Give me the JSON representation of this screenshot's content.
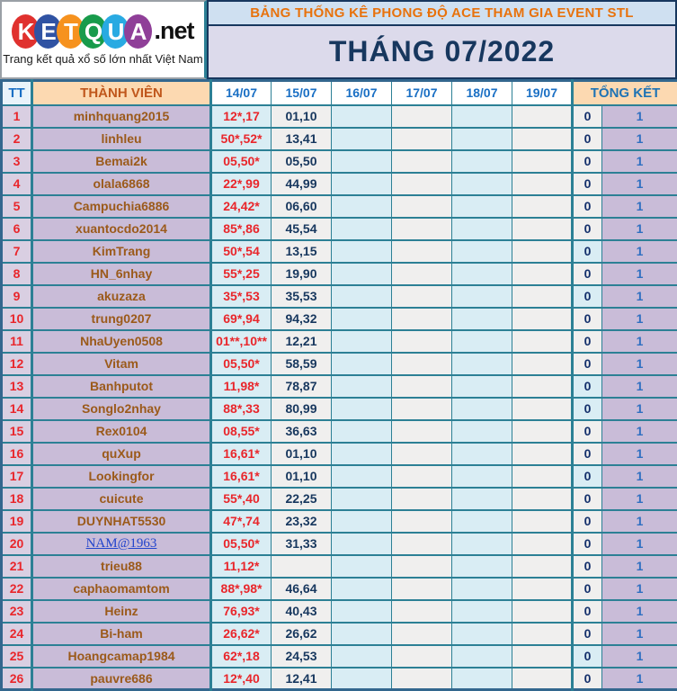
{
  "logo": {
    "letters": [
      {
        "ch": "K",
        "color": "#e0312e"
      },
      {
        "ch": "E",
        "color": "#3053a3"
      },
      {
        "ch": "T",
        "color": "#f6921e"
      },
      {
        "ch": "Q",
        "color": "#189b4b"
      },
      {
        "ch": "U",
        "color": "#29aae2"
      },
      {
        "ch": "A",
        "color": "#8f3f98"
      }
    ],
    "suffix": ".net",
    "tagline": "Trang kết quả xổ số lớn nhất Việt Nam"
  },
  "header": {
    "banner": "BẢNG THỐNG KÊ PHONG ĐỘ ACE THAM GIA EVENT STL",
    "month_title": "THÁNG 07/2022"
  },
  "table": {
    "columns": {
      "tt": "TT",
      "member": "THÀNH VIÊN",
      "dates": [
        "14/07",
        "15/07",
        "16/07",
        "17/07",
        "18/07",
        "19/07"
      ],
      "total": "TỔNG KẾT"
    },
    "rows": [
      {
        "tt": "1",
        "member": "minhquang2015",
        "link": false,
        "d14": "12*,17",
        "d15": "01,10",
        "zero": "0",
        "zero_hl": false,
        "one": "1"
      },
      {
        "tt": "2",
        "member": "linhleu",
        "link": false,
        "d14": "50*,52*",
        "d15": "13,41",
        "zero": "0",
        "zero_hl": false,
        "one": "1"
      },
      {
        "tt": "3",
        "member": "Bemai2k",
        "link": false,
        "d14": "05,50*",
        "d15": "05,50",
        "zero": "0",
        "zero_hl": false,
        "one": "1"
      },
      {
        "tt": "4",
        "member": "olala6868",
        "link": false,
        "d14": "22*,99",
        "d15": "44,99",
        "zero": "0",
        "zero_hl": false,
        "one": "1"
      },
      {
        "tt": "5",
        "member": "Campuchia6886",
        "link": false,
        "d14": "24,42*",
        "d15": "06,60",
        "zero": "0",
        "zero_hl": false,
        "one": "1"
      },
      {
        "tt": "6",
        "member": "xuantocdo2014",
        "link": false,
        "d14": "85*,86",
        "d15": "45,54",
        "zero": "0",
        "zero_hl": false,
        "one": "1"
      },
      {
        "tt": "7",
        "member": "KimTrang",
        "link": false,
        "d14": "50*,54",
        "d15": "13,15",
        "zero": "0",
        "zero_hl": true,
        "one": "1"
      },
      {
        "tt": "8",
        "member": "HN_6nhay",
        "link": false,
        "d14": "55*,25",
        "d15": "19,90",
        "zero": "0",
        "zero_hl": false,
        "one": "1"
      },
      {
        "tt": "9",
        "member": "akuzaza",
        "link": false,
        "d14": "35*,53",
        "d15": "35,53",
        "zero": "0",
        "zero_hl": true,
        "one": "1"
      },
      {
        "tt": "10",
        "member": "trung0207",
        "link": false,
        "d14": "69*,94",
        "d15": "94,32",
        "zero": "0",
        "zero_hl": false,
        "one": "1"
      },
      {
        "tt": "11",
        "member": "NhaUyen0508",
        "link": false,
        "d14": "01**,10**",
        "d15": "12,21",
        "zero": "0",
        "zero_hl": false,
        "one": "1"
      },
      {
        "tt": "12",
        "member": "Vitam",
        "link": false,
        "d14": "05,50*",
        "d15": "58,59",
        "zero": "0",
        "zero_hl": false,
        "one": "1"
      },
      {
        "tt": "13",
        "member": "Banhputot",
        "link": false,
        "d14": "11,98*",
        "d15": "78,87",
        "zero": "0",
        "zero_hl": true,
        "one": "1"
      },
      {
        "tt": "14",
        "member": "Songlo2nhay",
        "link": false,
        "d14": "88*,33",
        "d15": "80,99",
        "zero": "0",
        "zero_hl": true,
        "one": "1"
      },
      {
        "tt": "15",
        "member": "Rex0104",
        "link": false,
        "d14": "08,55*",
        "d15": "36,63",
        "zero": "0",
        "zero_hl": false,
        "one": "1"
      },
      {
        "tt": "16",
        "member": "quXup",
        "link": false,
        "d14": "16,61*",
        "d15": "01,10",
        "zero": "0",
        "zero_hl": false,
        "one": "1"
      },
      {
        "tt": "17",
        "member": "Lookingfor",
        "link": false,
        "d14": "16,61*",
        "d15": "01,10",
        "zero": "0",
        "zero_hl": true,
        "one": "1"
      },
      {
        "tt": "18",
        "member": "cuicute",
        "link": false,
        "d14": "55*,40",
        "d15": "22,25",
        "zero": "0",
        "zero_hl": false,
        "one": "1"
      },
      {
        "tt": "19",
        "member": "DUYNHAT5530",
        "link": false,
        "d14": "47*,74",
        "d15": "23,32",
        "zero": "0",
        "zero_hl": false,
        "one": "1"
      },
      {
        "tt": "20",
        "member": "NAM@1963",
        "link": true,
        "d14": "05,50*",
        "d15": "31,33",
        "zero": "0",
        "zero_hl": false,
        "one": "1"
      },
      {
        "tt": "21",
        "member": "trieu88",
        "link": false,
        "d14": "11,12*",
        "d15": "",
        "zero": "0",
        "zero_hl": false,
        "one": "1"
      },
      {
        "tt": "22",
        "member": "caphaomamtom",
        "link": false,
        "d14": "88*,98*",
        "d15": "46,64",
        "zero": "0",
        "zero_hl": false,
        "one": "1"
      },
      {
        "tt": "23",
        "member": "Heinz",
        "link": false,
        "d14": "76,93*",
        "d15": "40,43",
        "zero": "0",
        "zero_hl": false,
        "one": "1"
      },
      {
        "tt": "24",
        "member": "Bi-ham",
        "link": false,
        "d14": "26,62*",
        "d15": "26,62",
        "zero": "0",
        "zero_hl": false,
        "one": "1"
      },
      {
        "tt": "25",
        "member": "Hoangcamap1984",
        "link": false,
        "d14": "62*,18",
        "d15": "24,53",
        "zero": "0",
        "zero_hl": true,
        "one": "1"
      },
      {
        "tt": "26",
        "member": "pauvre686",
        "link": false,
        "d14": "12*,40",
        "d15": "12,41",
        "zero": "0",
        "zero_hl": false,
        "one": "1"
      }
    ]
  },
  "colors": {
    "grid_teal": "#2c8095",
    "outer_border": "#33678e",
    "peach_header": "#fcd9b1",
    "lavender_cell": "#c9bcd8",
    "cyan_cell": "#d9edf4",
    "gray_cell": "#f0efee",
    "banner_bg": "#cfe0f1",
    "banner_text": "#e8720c",
    "month_bg": "#dcdaeb",
    "navy": "#17375e",
    "red_value": "#e9262b",
    "date_blue": "#1a6fc4",
    "member_brown": "#9b5a1a",
    "one_blue": "#2f6fc1",
    "link_blue": "#2244cc"
  }
}
